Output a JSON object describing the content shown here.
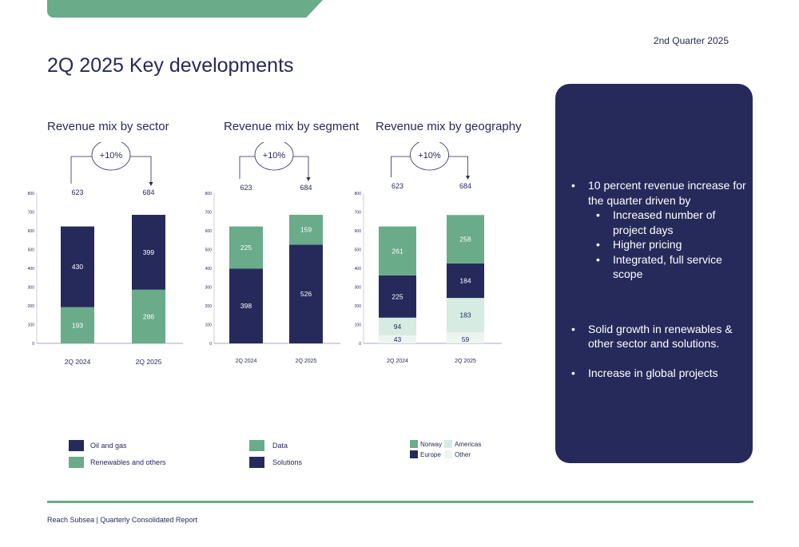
{
  "header": {
    "quarter": "2nd Quarter 2025",
    "title": "2Q 2025 Key developments"
  },
  "colors": {
    "navy": "#262a5a",
    "green": "#6aab8a",
    "light_green": "#d6ebe1",
    "pale_green": "#edf5f1"
  },
  "chart_data": [
    {
      "type": "bar",
      "title": "Revenue mix by sector",
      "categories": [
        "2Q 2024",
        "2Q 2025"
      ],
      "series": [
        {
          "name": "Renewables and others",
          "values": [
            193,
            286
          ],
          "color": "#6aab8a",
          "label_color": "#ffffff"
        },
        {
          "name": "Oil and gas",
          "values": [
            430,
            399
          ],
          "color": "#262a5a",
          "label_color": "#ffffff"
        }
      ],
      "totals": [
        "623",
        "684"
      ],
      "growth": "+10%",
      "ylim": [
        0,
        800
      ],
      "yticks": [
        "0",
        "100",
        "200",
        "300",
        "400",
        "500",
        "600",
        "700",
        "800"
      ],
      "legend": "bottom"
    },
    {
      "type": "bar",
      "title": "Revenue mix by segment",
      "categories": [
        "2Q 2024",
        "2Q 2025"
      ],
      "series": [
        {
          "name": "Solutions",
          "values": [
            398,
            526
          ],
          "color": "#262a5a",
          "label_color": "#ffffff"
        },
        {
          "name": "Data",
          "values": [
            225,
            159
          ],
          "color": "#6aab8a",
          "label_color": "#ffffff"
        }
      ],
      "totals": [
        "623",
        "684"
      ],
      "growth": "+10%",
      "ylim": [
        0,
        800
      ],
      "yticks": [
        "0",
        "100",
        "200",
        "300",
        "400",
        "500",
        "600",
        "700",
        "800"
      ],
      "legend": "bottom"
    },
    {
      "type": "bar",
      "title": "Revenue mix by geography",
      "categories": [
        "2Q 2024",
        "2Q 2025"
      ],
      "series": [
        {
          "name": "Other",
          "values": [
            43,
            59
          ],
          "color": "#edf5f1",
          "label_color": "#262a5a"
        },
        {
          "name": "Americas",
          "values": [
            94,
            183
          ],
          "color": "#d6ebe1",
          "label_color": "#262a5a"
        },
        {
          "name": "Europe",
          "values": [
            225,
            184
          ],
          "color": "#262a5a",
          "label_color": "#ffffff"
        },
        {
          "name": "Norway",
          "values": [
            261,
            258
          ],
          "color": "#6aab8a",
          "label_color": "#ffffff"
        }
      ],
      "totals": [
        "623",
        "684"
      ],
      "growth": "+10%",
      "ylim": [
        0,
        800
      ],
      "yticks": [
        "0",
        "100",
        "200",
        "300",
        "400",
        "500",
        "600",
        "700",
        "800"
      ],
      "legend": "bottom"
    }
  ],
  "legends": {
    "sector": [
      {
        "label": "Oil and gas",
        "color": "#262a5a"
      },
      {
        "label": "Renewables and others",
        "color": "#6aab8a"
      }
    ],
    "segment": [
      {
        "label": "Data",
        "color": "#6aab8a"
      },
      {
        "label": "Solutions",
        "color": "#262a5a"
      }
    ],
    "geography": [
      {
        "label": "Norway",
        "color": "#6aab8a"
      },
      {
        "label": "Americas",
        "color": "#d6ebe1"
      },
      {
        "label": "Europe",
        "color": "#262a5a"
      },
      {
        "label": "Other",
        "color": "#edf5f1"
      }
    ]
  },
  "highlights": {
    "b1": "10 percent revenue increase for the quarter driven by",
    "sub": [
      "Increased number of project days",
      "Higher pricing",
      "Integrated, full service scope"
    ],
    "b2": "Solid growth in renewables & other sector and solutions.",
    "b3": "Increase in global projects"
  },
  "footer": {
    "text": "Reach Subsea | Quarterly Consolidated Report"
  }
}
